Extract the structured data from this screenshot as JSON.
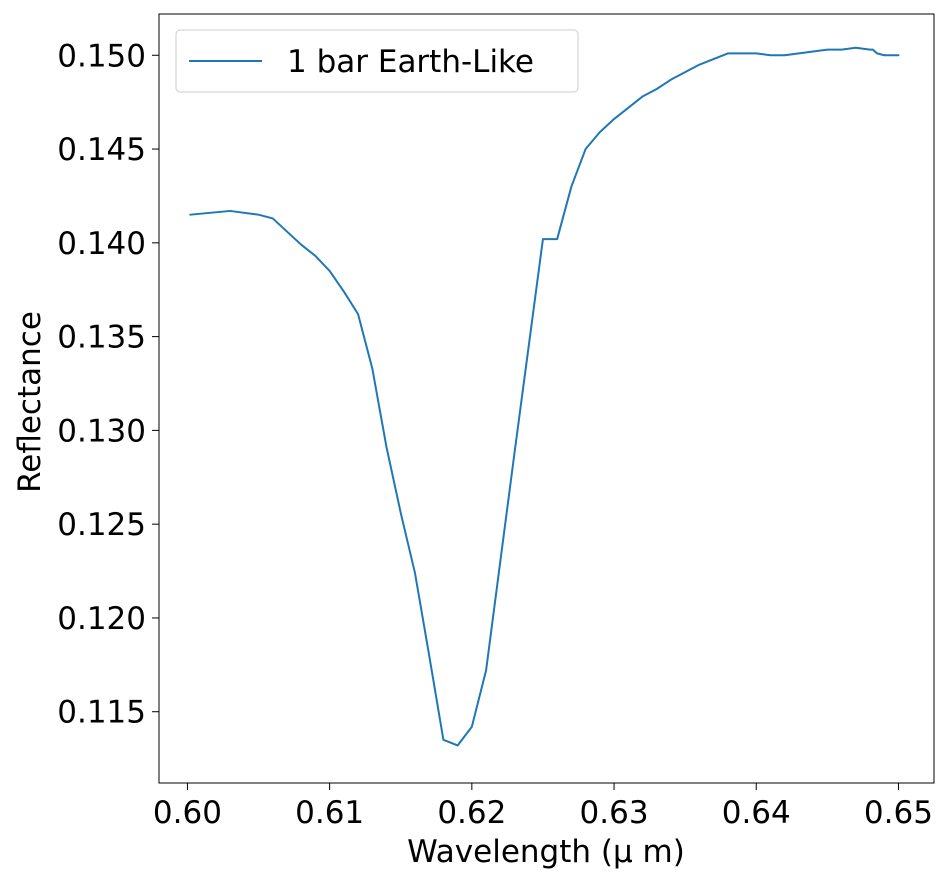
{
  "chart_data": {
    "type": "line",
    "title": "",
    "xlabel": "Wavelength (μ m)",
    "ylabel": "Reflectance",
    "xlim": [
      0.598,
      0.6525
    ],
    "ylim": [
      0.1112,
      0.1522
    ],
    "grid": false,
    "legend_position": "top-left",
    "x_ticks": [
      0.6,
      0.61,
      0.62,
      0.63,
      0.64,
      0.65
    ],
    "x_tick_labels": [
      "0.60",
      "0.61",
      "0.62",
      "0.63",
      "0.64",
      "0.65"
    ],
    "y_ticks": [
      0.115,
      0.12,
      0.125,
      0.13,
      0.135,
      0.14,
      0.145,
      0.15
    ],
    "y_tick_labels": [
      "0.115",
      "0.120",
      "0.125",
      "0.130",
      "0.135",
      "0.140",
      "0.145",
      "0.150"
    ],
    "series": [
      {
        "name": "1 bar Earth-Like",
        "color": "#1f77b4",
        "x": [
          0.6002,
          0.603,
          0.605,
          0.606,
          0.607,
          0.608,
          0.609,
          0.61,
          0.611,
          0.612,
          0.613,
          0.614,
          0.615,
          0.616,
          0.617,
          0.618,
          0.619,
          0.62,
          0.621,
          0.622,
          0.623,
          0.624,
          0.625,
          0.626,
          0.627,
          0.628,
          0.629,
          0.63,
          0.631,
          0.632,
          0.633,
          0.634,
          0.635,
          0.636,
          0.637,
          0.638,
          0.639,
          0.64,
          0.641,
          0.642,
          0.643,
          0.644,
          0.645,
          0.646,
          0.647,
          0.648,
          0.6482,
          0.6485,
          0.649,
          0.65
        ],
        "y": [
          0.1415,
          0.1417,
          0.1415,
          0.1413,
          0.1406,
          0.1399,
          0.1393,
          0.1385,
          0.1374,
          0.1362,
          0.1333,
          0.1291,
          0.1256,
          0.1224,
          0.118,
          0.1135,
          0.1132,
          0.1142,
          0.1172,
          0.123,
          0.1288,
          0.1345,
          0.1402,
          0.1402,
          0.143,
          0.145,
          0.1459,
          0.1466,
          0.1472,
          0.1478,
          0.1482,
          0.1487,
          0.1491,
          0.1495,
          0.1498,
          0.1501,
          0.1501,
          0.1501,
          0.15,
          0.15,
          0.1501,
          0.1502,
          0.1503,
          0.1503,
          0.1504,
          0.1503,
          0.1503,
          0.1501,
          0.15,
          0.15
        ]
      }
    ]
  }
}
